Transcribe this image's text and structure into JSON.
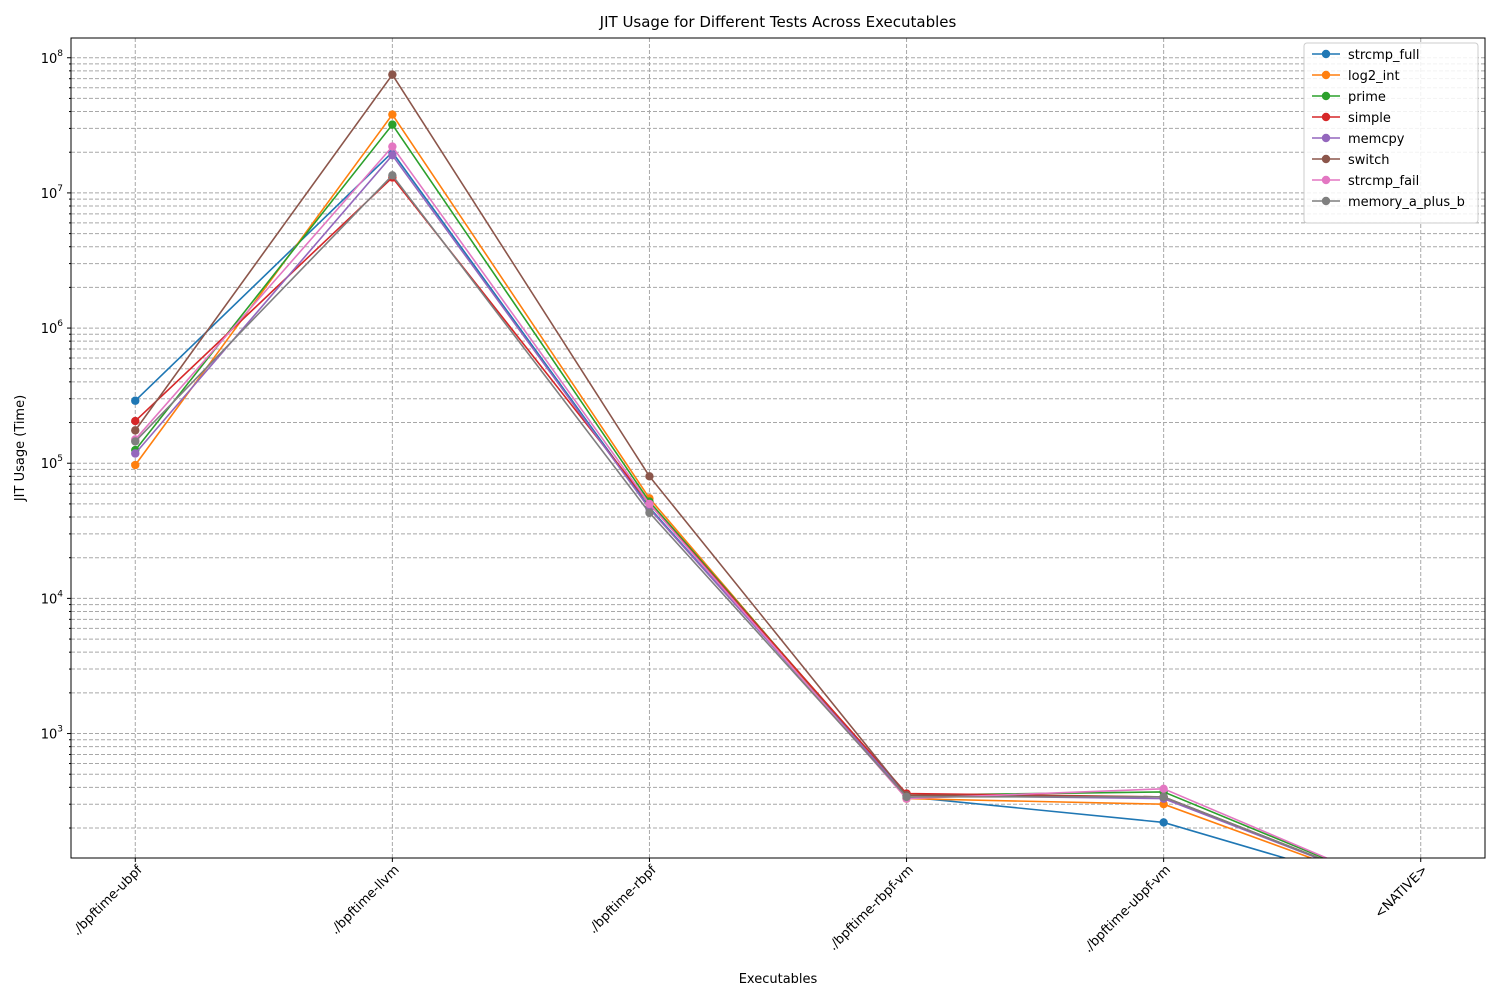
{
  "chart_data": {
    "type": "line",
    "title": "JIT Usage for Different Tests Across Executables",
    "xlabel": "Executables",
    "ylabel": "JIT Usage (Time)",
    "yscale": "log",
    "ylim": [
      120,
      140000000
    ],
    "grid": true,
    "legend_position": "top-right",
    "categories": [
      "./bpftime-ubpf",
      "./bpftime-llvm",
      "./bpftime-rbpf",
      "./bpftime-rbpf-vm",
      "./bpftime-ubpf-vm",
      "<NATIVE>"
    ],
    "y_tick_labels": [
      {
        "base": "10",
        "exp": "3",
        "value": 1000
      },
      {
        "base": "10",
        "exp": "4",
        "value": 10000
      },
      {
        "base": "10",
        "exp": "5",
        "value": 100000
      },
      {
        "base": "10",
        "exp": "6",
        "value": 1000000
      },
      {
        "base": "10",
        "exp": "7",
        "value": 10000000
      },
      {
        "base": "10",
        "exp": "8",
        "value": 100000000
      }
    ],
    "series": [
      {
        "name": "strcmp_full",
        "color": "#1f77b4",
        "values": [
          290000,
          20000000,
          47000,
          340,
          220,
          0
        ]
      },
      {
        "name": "log2_int",
        "color": "#ff7f0e",
        "values": [
          97000,
          38000000,
          55000,
          330,
          300,
          0
        ]
      },
      {
        "name": "prime",
        "color": "#2ca02c",
        "values": [
          125000,
          32000000,
          52000,
          350,
          370,
          0
        ]
      },
      {
        "name": "simple",
        "color": "#d62728",
        "values": [
          205000,
          13000000,
          50000,
          360,
          340,
          0
        ]
      },
      {
        "name": "memcpy",
        "color": "#9467bd",
        "values": [
          118000,
          19000000,
          46000,
          350,
          330,
          0
        ]
      },
      {
        "name": "switch",
        "color": "#8c564b",
        "values": [
          175000,
          75000000,
          80000,
          350,
          340,
          0
        ]
      },
      {
        "name": "strcmp_fail",
        "color": "#e377c2",
        "values": [
          150000,
          22000000,
          50000,
          330,
          390,
          0
        ]
      },
      {
        "name": "memory_a_plus_b",
        "color": "#7f7f7f",
        "values": [
          145000,
          13500000,
          43000,
          340,
          340,
          0
        ]
      }
    ]
  }
}
